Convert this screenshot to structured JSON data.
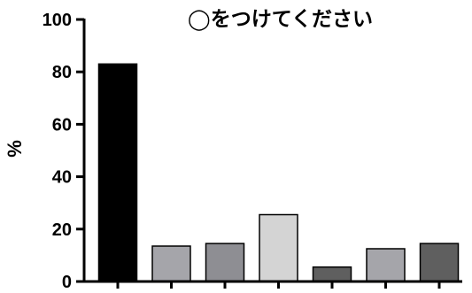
{
  "chart_data": {
    "type": "bar",
    "title": "◯をつけてください",
    "xlabel": "",
    "ylabel": "%",
    "ylim": [
      0,
      100
    ],
    "yticks": [
      0,
      20,
      40,
      60,
      80,
      100
    ],
    "categories": [
      "",
      "",
      "",
      "",
      "",
      "",
      ""
    ],
    "values": [
      83,
      13.5,
      14.5,
      25.5,
      5.5,
      12.5,
      14.5
    ],
    "colors": [
      "#000000",
      "#a5a5aa",
      "#8e8e93",
      "#d4d4d4",
      "#5f5f5f",
      "#a5a5aa",
      "#5f5f5f"
    ],
    "grid": false,
    "legend": "none"
  }
}
